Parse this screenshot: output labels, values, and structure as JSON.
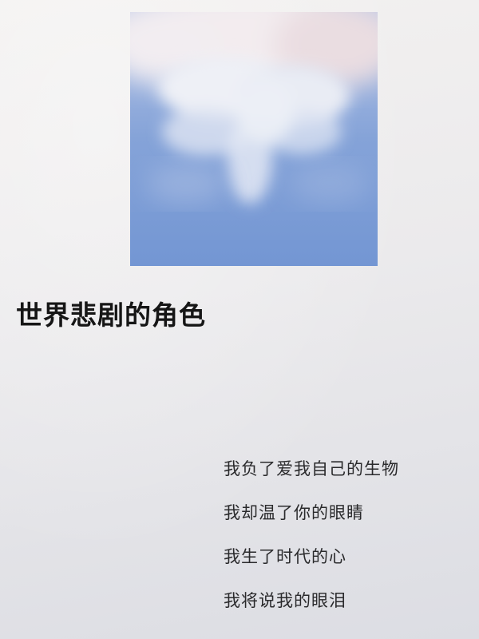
{
  "photo": {
    "subject": "sky-with-clouds",
    "colors": {
      "sky": "#7699d5",
      "cloud": "#f4eef0",
      "cloud_tint": "#e8d8dc"
    }
  },
  "title": "世界悲剧的角色",
  "poem": {
    "lines": [
      "我负了爱我自己的生物",
      "我却温了你的眼睛",
      "我生了时代的心",
      "我将说我的眼泪"
    ]
  }
}
